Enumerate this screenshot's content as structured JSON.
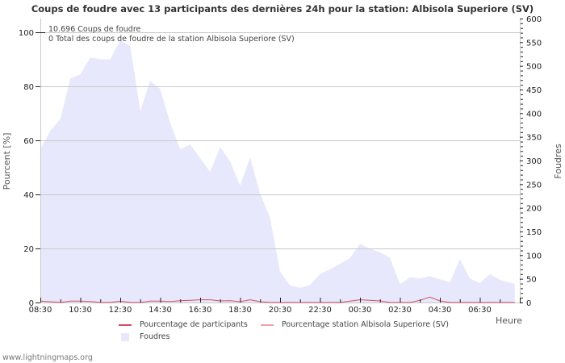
{
  "chart_data": {
    "type": "area",
    "title": "Coups de foudre avec 13 participants des dernières 24h pour la station: Albisola Superiore (SV)",
    "xlabel": "Heure",
    "ylabel_left": "Pourcent   [%]",
    "ylabel_right": "Foudres",
    "ylim_left": [
      0,
      105
    ],
    "ylim_right": [
      0,
      600
    ],
    "yticks_left": [
      0,
      20,
      40,
      60,
      80,
      100
    ],
    "yticks_right": [
      0,
      50,
      100,
      150,
      200,
      250,
      300,
      350,
      400,
      450,
      500,
      550,
      600
    ],
    "xticks": [
      "08:30",
      "10:30",
      "12:30",
      "14:30",
      "16:30",
      "18:30",
      "20:30",
      "22:30",
      "00:30",
      "02:30",
      "04:30",
      "06:30"
    ],
    "grid": true,
    "annotations": [
      "10.696  Coups de foudre",
      "0 Total des coups de foudre de la station Albisola Superiore (SV)"
    ],
    "legend": [
      {
        "label": "Pourcentage de participants",
        "type": "line",
        "color": "#d05060"
      },
      {
        "label": "Pourcentage station Albisola Superiore (SV)",
        "type": "line",
        "color": "#f0a0a8"
      },
      {
        "label": "Foudres",
        "type": "area",
        "color": "#e8e8fc"
      }
    ],
    "series": [
      {
        "name": "Foudres",
        "axis": "right",
        "x": [
          "08:30",
          "09:00",
          "09:30",
          "10:00",
          "10:30",
          "11:00",
          "11:30",
          "12:00",
          "12:30",
          "13:00",
          "13:30",
          "14:00",
          "14:30",
          "15:00",
          "15:30",
          "16:00",
          "16:30",
          "17:00",
          "17:30",
          "18:00",
          "18:30",
          "19:00",
          "19:30",
          "20:00",
          "20:30",
          "21:00",
          "21:30",
          "22:00",
          "22:30",
          "23:00",
          "23:30",
          "00:00",
          "00:30",
          "01:00",
          "01:30",
          "02:00",
          "02:30",
          "03:00",
          "03:30",
          "04:00",
          "04:30",
          "05:00",
          "05:30",
          "06:00",
          "06:30",
          "07:00",
          "07:30",
          "08:15"
        ],
        "values": [
          324,
          363,
          388,
          473,
          482,
          518,
          514,
          514,
          554,
          542,
          405,
          468,
          451,
          380,
          324,
          334,
          305,
          276,
          329,
          298,
          247,
          307,
          230,
          179,
          65,
          36,
          31,
          37,
          60,
          70,
          82,
          94,
          124,
          114,
          106,
          95,
          39,
          53,
          51,
          56,
          49,
          43,
          92,
          51,
          41,
          60,
          48,
          39
        ]
      },
      {
        "name": "Pourcentage de participants",
        "axis": "left",
        "x": [
          "08:30",
          "09:00",
          "09:30",
          "10:00",
          "10:30",
          "11:00",
          "11:30",
          "12:00",
          "12:30",
          "13:00",
          "13:30",
          "14:00",
          "14:30",
          "15:00",
          "15:30",
          "16:00",
          "16:30",
          "17:00",
          "17:30",
          "18:00",
          "18:30",
          "19:00",
          "19:30",
          "20:00",
          "20:30",
          "21:00",
          "21:30",
          "22:00",
          "22:30",
          "23:00",
          "23:30",
          "00:00",
          "00:30",
          "01:00",
          "01:30",
          "02:00",
          "02:30",
          "03:00",
          "03:30",
          "04:00",
          "04:30",
          "05:00",
          "05:30",
          "06:00",
          "06:30",
          "07:00",
          "07:30",
          "08:15"
        ],
        "values": [
          0.5,
          0.3,
          0,
          0.5,
          0.5,
          0.4,
          0,
          0,
          0.5,
          0,
          0,
          0.5,
          0.5,
          0.4,
          0.7,
          0.8,
          1.0,
          1.0,
          0.6,
          0.7,
          0.3,
          1.0,
          0.3,
          0,
          0,
          0,
          0,
          0,
          0,
          0,
          0,
          0.5,
          1.0,
          0.8,
          0.6,
          0,
          0,
          0,
          0.8,
          2.0,
          0.6,
          0,
          0,
          0,
          0,
          0,
          0,
          0
        ]
      },
      {
        "name": "Pourcentage station Albisola Superiore (SV)",
        "axis": "left",
        "values": "0 (not visible)"
      }
    ]
  },
  "footer": {
    "text": "www.lightningmaps.org"
  }
}
